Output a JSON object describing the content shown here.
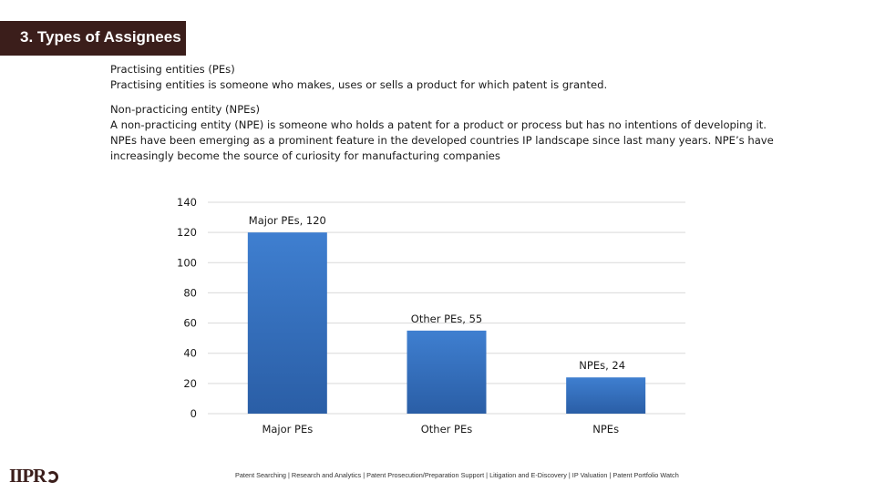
{
  "slide": {
    "title": "3. Types of Assignees",
    "pe_heading": "Practising entities (PEs)",
    "pe_text": "Practising entities is someone who makes, uses or sells a product for which patent is granted.",
    "npe_heading": "Non-practicing entity (NPEs)",
    "npe_text_1": "A non-practicing entity (NPE) is someone who holds a patent for a product or process but has no intentions of developing it.",
    "npe_text_2": "NPEs have been emerging as a prominent feature in the developed countries IP landscape since last many years. NPE’s have",
    "npe_text_3": "increasingly become the source of curiosity for manufacturing companies"
  },
  "chart_data": {
    "type": "bar",
    "categories": [
      "Major PEs",
      "Other PEs",
      "NPEs"
    ],
    "values": [
      120,
      55,
      24
    ],
    "data_labels": [
      "Major PEs, 120",
      "Other PEs, 55",
      "NPEs, 24"
    ],
    "ylim": [
      0,
      140
    ],
    "yticks": [
      0,
      20,
      40,
      60,
      80,
      100,
      120,
      140
    ],
    "grid": true,
    "bar_color_top": "#3f7fd0",
    "bar_color_bottom": "#2a5ea6"
  },
  "logo": {
    "text": "IIPR"
  },
  "footer": {
    "text": "Patent Searching | Research and Analytics | Patent Prosecution/Preparation Support | Litigation and E-Discovery | IP Valuation | Patent Portfolio Watch"
  }
}
